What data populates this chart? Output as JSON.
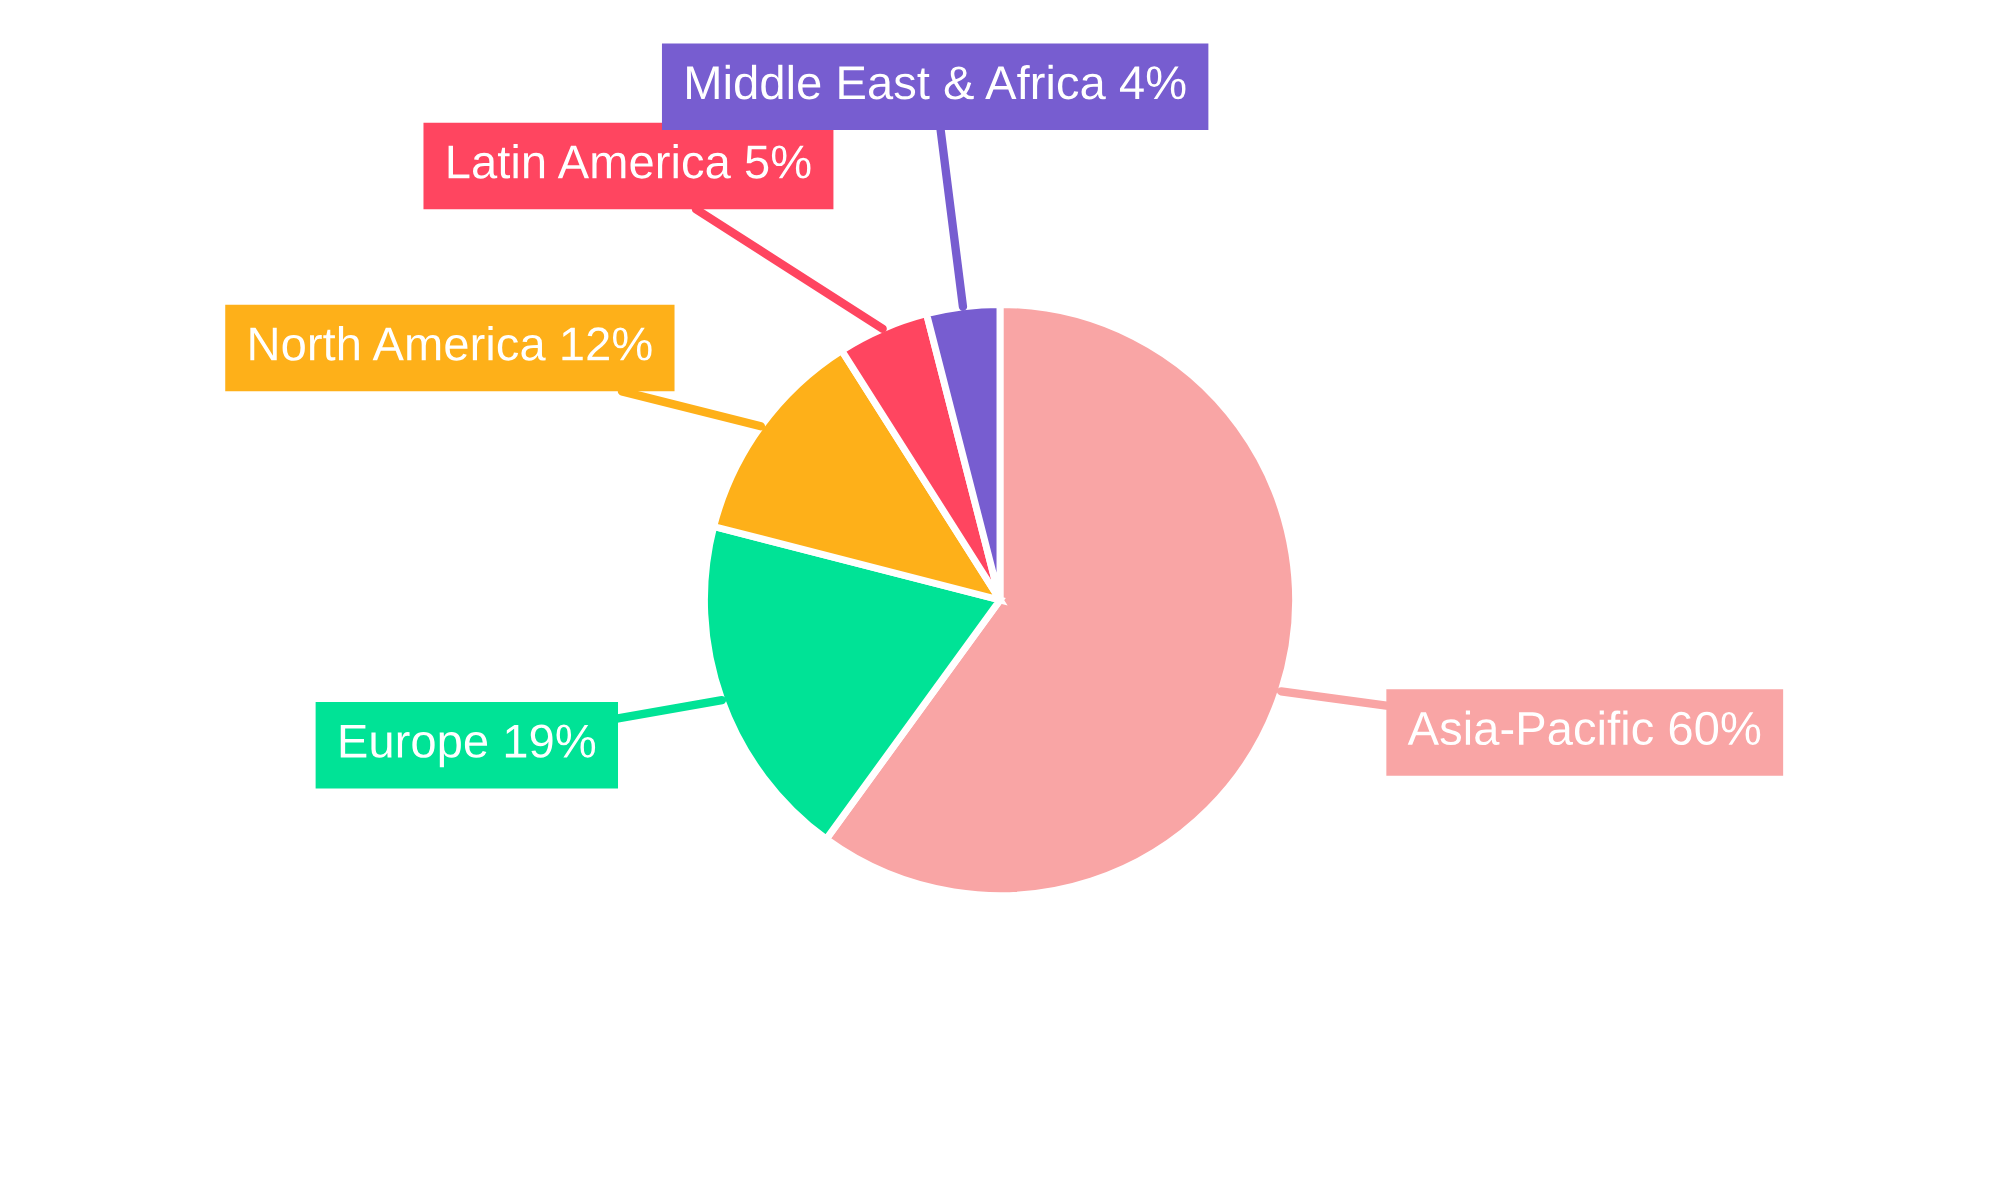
{
  "chart_data": {
    "type": "pie",
    "categories": [
      "Asia-Pacific",
      "Europe",
      "North America",
      "Latin America",
      "Middle East & Africa"
    ],
    "values": [
      60,
      19,
      12,
      5,
      4
    ],
    "colors": [
      "#f9a5a5",
      "#00e396",
      "#feb019",
      "#ff4560",
      "#775dd0"
    ],
    "value_labels": [
      "60%",
      "19%",
      "12%",
      "5%",
      "4%"
    ]
  }
}
